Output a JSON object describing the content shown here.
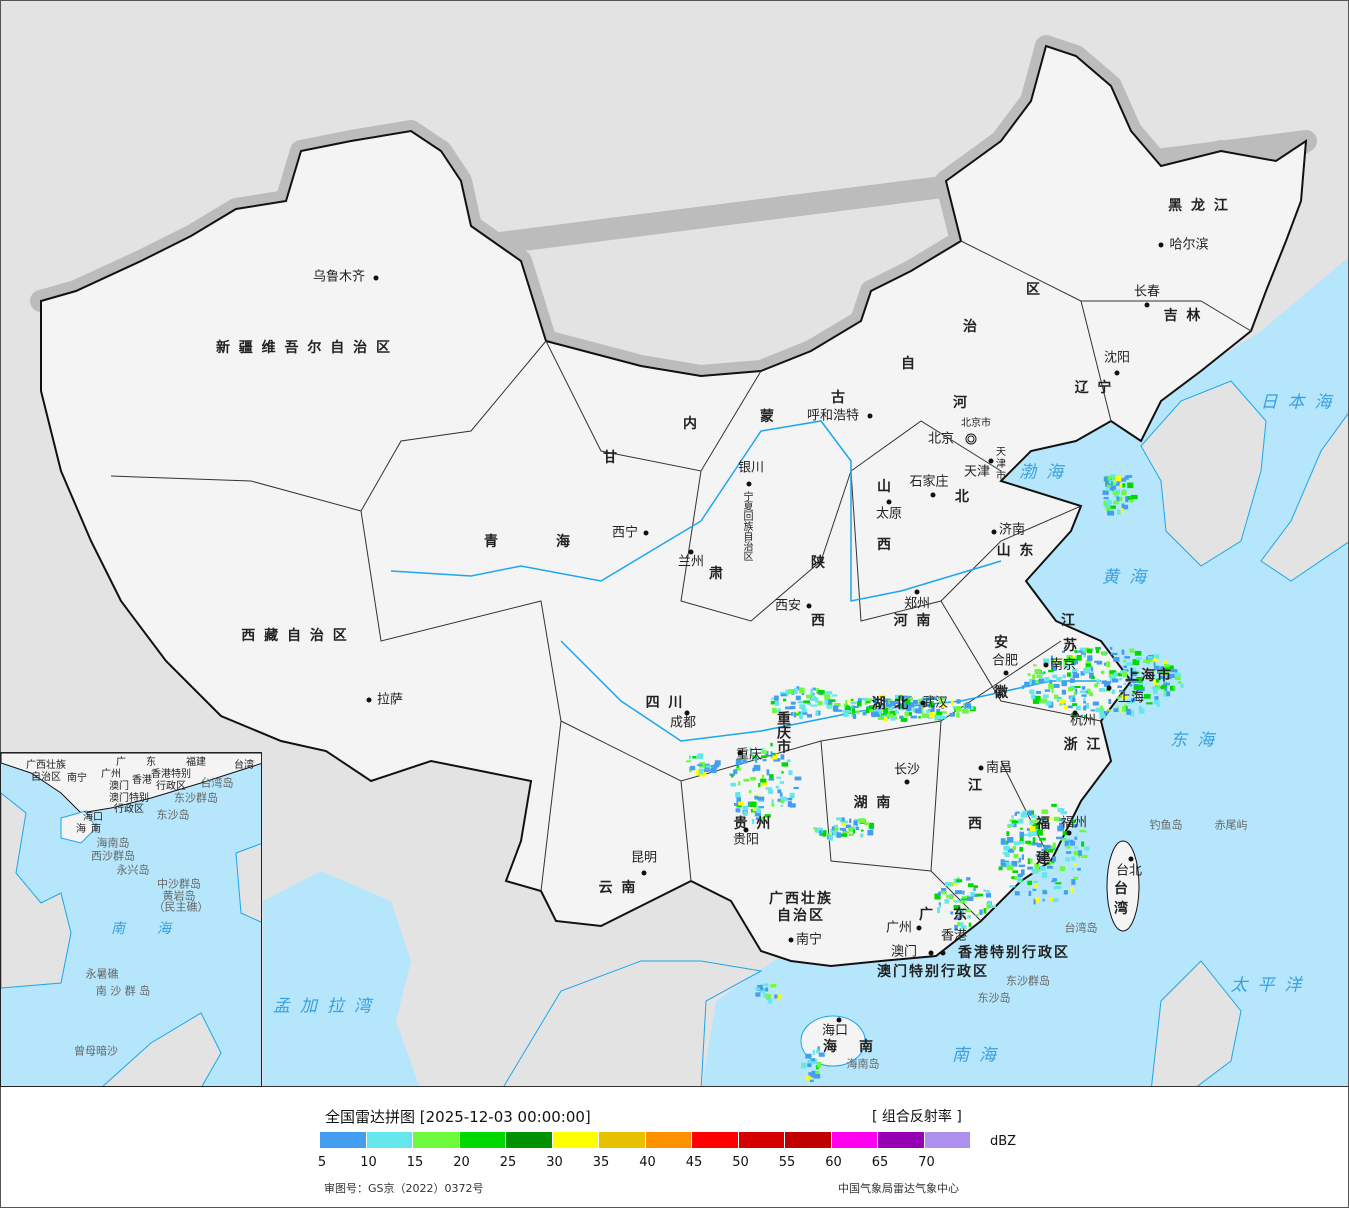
{
  "legend": {
    "title": "全国雷达拼图 [2025-12-03 00:00:00]",
    "product": "[ 组合反射率 ]",
    "unit": "dBZ",
    "colors": [
      "#429ef1",
      "#64e7eb",
      "#6dfa3d",
      "#00d800",
      "#019000",
      "#ffff00",
      "#e7c000",
      "#ff9000",
      "#ff0000",
      "#d60000",
      "#c00000",
      "#ff00f0",
      "#9600b4",
      "#ad90f0"
    ],
    "ticks": [
      "5",
      "10",
      "15",
      "20",
      "25",
      "30",
      "35",
      "40",
      "45",
      "50",
      "55",
      "60",
      "65",
      "70"
    ],
    "approval": "审图号：GS京（2022）0372号",
    "source": "中国气象局雷达气象中心"
  },
  "map": {
    "colors": {
      "sea": "#b6e6fb",
      "land_foreign": "#e3e3e3",
      "china": "#f4f4f4",
      "border": "#111111",
      "river": "#1aa7ec"
    },
    "provinces": {
      "xinjiang": "新 疆 维 吾 尔 自 治 区",
      "xizang": "西 藏 自 治 区",
      "qinghai": [
        "青",
        "海"
      ],
      "gansu": [
        "甘",
        "肃"
      ],
      "neimenggu": [
        "内",
        "蒙",
        "古",
        "自",
        "治",
        "区"
      ],
      "heilongjiang": "黑 龙 江",
      "jilin": "吉 林",
      "liaoning": "辽 宁",
      "hebei": [
        "河",
        "北"
      ],
      "shanxi": [
        "山",
        "西"
      ],
      "shandong": "山 东",
      "shaanxi": [
        "陕",
        "西"
      ],
      "henan": "河 南",
      "ningxia": "宁夏回族自治区",
      "jiangsu": [
        "江",
        "苏"
      ],
      "anhui": [
        "安",
        "徽"
      ],
      "hubei": "湖 北",
      "sichuan": "四 川",
      "chongqing": "重庆市",
      "zhejiang": "浙 江",
      "shanghai": "上海市",
      "jiangxi": [
        "江",
        "西"
      ],
      "hunan": "湖 南",
      "guizhou": "贵 州",
      "yunnan": "云 南",
      "fujian": [
        "福",
        "建"
      ],
      "guangxi": [
        "广西壮族",
        "自治区"
      ],
      "guangdong": [
        "广",
        "东"
      ],
      "taiwan": [
        "台",
        "湾"
      ],
      "hainan": [
        "海",
        "南"
      ],
      "hongkong": "香港特别行政区",
      "macau": "澳门特别行政区",
      "beijing_city": "北京市",
      "tianjin_city": [
        "天",
        "津",
        "市"
      ]
    },
    "cities": [
      "乌鲁木齐",
      "拉萨",
      "西宁",
      "兰州",
      "银川",
      "呼和浩特",
      "北京",
      "天津",
      "石家庄",
      "太原",
      "济南",
      "郑州",
      "西安",
      "成都",
      "重庆",
      "贵阳",
      "昆明",
      "南宁",
      "广州",
      "澳门",
      "香港",
      "海口",
      "长沙",
      "南昌",
      "武汉",
      "合肥",
      "南京",
      "杭州",
      "福州",
      "台北",
      "沈阳",
      "长春",
      "哈尔滨",
      "上海"
    ],
    "seas": [
      "渤海",
      "黄海",
      "东海",
      "日本海",
      "太平洋",
      "南海",
      "孟加拉湾"
    ],
    "islands": [
      "钓鱼岛",
      "赤尾屿",
      "台湾岛",
      "东沙群岛",
      "东沙岛",
      "海南岛"
    ],
    "inset": [
      "广西壮族",
      "自治区",
      "南宁",
      "广",
      "东",
      "广州",
      "澳门",
      "香港",
      "香港特别",
      "行政区",
      "澳门特别",
      "行政区",
      "台湾",
      "台湾岛",
      "东沙群岛",
      "东沙岛",
      "海口",
      "海",
      "南",
      "海南岛",
      "西沙群岛",
      "永兴岛",
      "中沙群岛",
      "黄岩岛",
      "（民主礁）",
      "南",
      "海",
      "永暑礁",
      "南 沙 群 岛",
      "曾母暗沙",
      "福建"
    ]
  }
}
